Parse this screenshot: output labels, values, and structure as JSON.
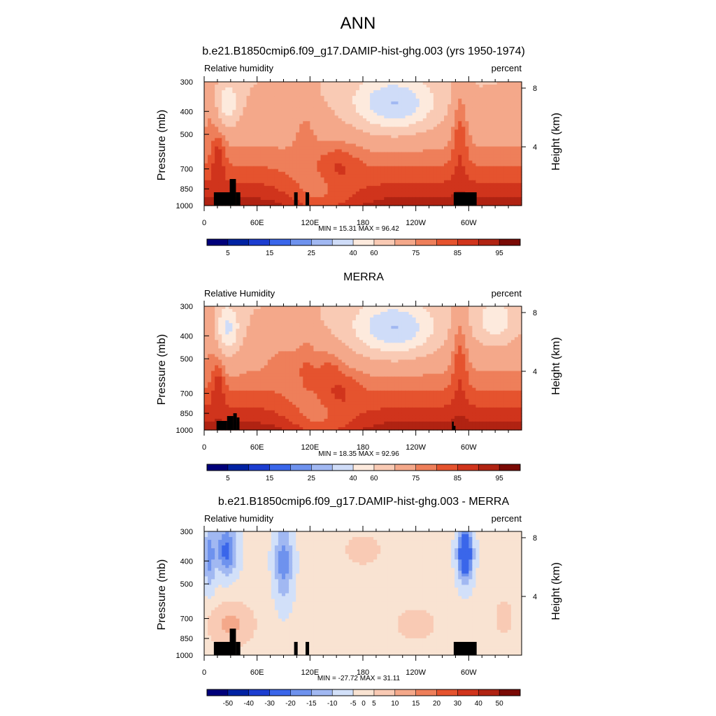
{
  "main_title": "ANN",
  "colors": {
    "abs_levels": [
      "#00007a",
      "#0022a2",
      "#1c3dd0",
      "#3a66ea",
      "#6e92ee",
      "#a1b8f2",
      "#cfdcf8",
      "#fdeadd",
      "#f9cab4",
      "#f4a88a",
      "#ee7f5a",
      "#e5532e",
      "#d0341c",
      "#b02312",
      "#7a0a05"
    ],
    "diff_levels": [
      "#00007a",
      "#0022a2",
      "#1c3dd0",
      "#3a66ea",
      "#6e92ee",
      "#a1b8f2",
      "#d2e0f9",
      "#f9e3d2",
      "#f9cab4",
      "#f4a88a",
      "#ee7f5a",
      "#e5532e",
      "#d0341c",
      "#b02312",
      "#7a0a05"
    ]
  },
  "chart_data": [
    {
      "type": "heatmap",
      "title": "b.e21.B1850cmip6.f09_g17.DAMIP-hist-ghg.003 (yrs 1950-1974)",
      "left_label": "Relative humidity",
      "right_label": "percent",
      "ylabel": "Pressure (mb)",
      "ylabel_right": "Height (km)",
      "y_ticks": [
        "300",
        "400",
        "500",
        "700",
        "850",
        "1000"
      ],
      "y_tick_values": [
        300,
        400,
        500,
        700,
        850,
        1000
      ],
      "ylim": [
        300,
        1000
      ],
      "y_scale": "log",
      "height_ticks": [
        "8",
        "4"
      ],
      "height_tick_values": [
        8,
        4
      ],
      "x_ticks": [
        "0",
        "60E",
        "120E",
        "180",
        "120W",
        "60W"
      ],
      "x_tick_values": [
        0,
        60,
        120,
        180,
        240,
        300
      ],
      "xlim": [
        0,
        360
      ],
      "minmax_text": "MIN =  15.31  MAX =  96.42",
      "colorbar_labels": [
        "5",
        "15",
        "25",
        "40",
        "60",
        "75",
        "85",
        "95"
      ],
      "colorbar_label_bounds": [
        1,
        3,
        5,
        7,
        8,
        10,
        12,
        14
      ]
    },
    {
      "type": "heatmap",
      "title": "MERRA",
      "left_label": "Relative Humidity",
      "right_label": "percent",
      "ylabel": "Pressure (mb)",
      "ylabel_right": "Height (km)",
      "y_ticks": [
        "300",
        "400",
        "500",
        "700",
        "850",
        "1000"
      ],
      "y_tick_values": [
        300,
        400,
        500,
        700,
        850,
        1000
      ],
      "ylim": [
        300,
        1000
      ],
      "y_scale": "log",
      "height_ticks": [
        "8",
        "4"
      ],
      "height_tick_values": [
        8,
        4
      ],
      "x_ticks": [
        "0",
        "60E",
        "120E",
        "180",
        "120W",
        "60W"
      ],
      "x_tick_values": [
        0,
        60,
        120,
        180,
        240,
        300
      ],
      "xlim": [
        0,
        360
      ],
      "minmax_text": "MIN =  18.35  MAX =  92.96",
      "colorbar_labels": [
        "5",
        "15",
        "25",
        "40",
        "60",
        "75",
        "85",
        "95"
      ],
      "colorbar_label_bounds": [
        1,
        3,
        5,
        7,
        8,
        10,
        12,
        14
      ]
    },
    {
      "type": "heatmap",
      "title": "b.e21.B1850cmip6.f09_g17.DAMIP-hist-ghg.003 - MERRA",
      "left_label": "Relative humidity",
      "right_label": "percent",
      "ylabel": "Pressure (mb)",
      "ylabel_right": "Height (km)",
      "y_ticks": [
        "300",
        "400",
        "500",
        "700",
        "850",
        "1000"
      ],
      "y_tick_values": [
        300,
        400,
        500,
        700,
        850,
        1000
      ],
      "ylim": [
        300,
        1000
      ],
      "y_scale": "log",
      "height_ticks": [
        "8",
        "4"
      ],
      "height_tick_values": [
        8,
        4
      ],
      "x_ticks": [
        "0",
        "60E",
        "120E",
        "180",
        "120W",
        "60W"
      ],
      "x_tick_values": [
        0,
        60,
        120,
        180,
        240,
        300
      ],
      "xlim": [
        0,
        360
      ],
      "minmax_text": "MIN = -27.72  MAX =  31.11",
      "colorbar_labels": [
        "-50",
        "-40",
        "-30",
        "-20",
        "-15",
        "-10",
        "-5",
        "0",
        "5",
        "10",
        "15",
        "20",
        "30",
        "40",
        "50"
      ],
      "colorbar_label_bounds": [
        1,
        2,
        3,
        4,
        5,
        6,
        7,
        7.5,
        8,
        9,
        10,
        11,
        12,
        13,
        14
      ]
    }
  ]
}
